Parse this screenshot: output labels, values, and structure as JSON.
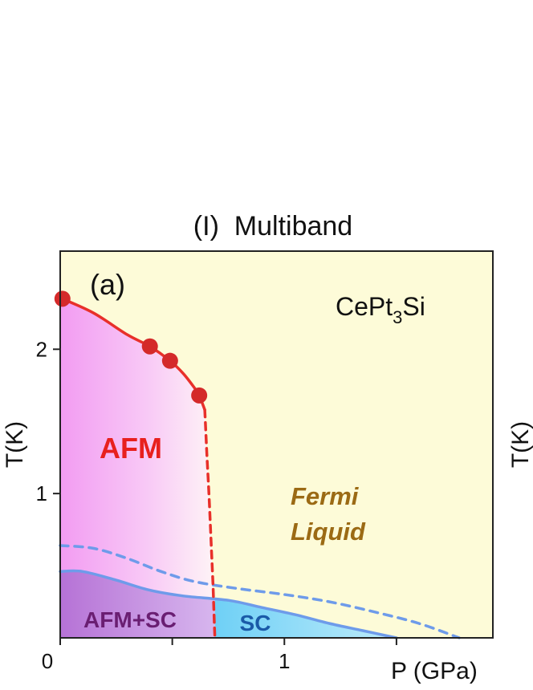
{
  "chart_data": {
    "type": "line",
    "title": "(I)  Multiband",
    "panel_label": "(a)",
    "material": {
      "base": "CePt",
      "sub": "3",
      "tail": "Si"
    },
    "xlabel": "P (GPa)",
    "ylabel": "T(K)",
    "xlim": [
      0,
      1.93
    ],
    "ylim": [
      0,
      2.68
    ],
    "x_ticks": [
      {
        "value": 0,
        "label": "0"
      },
      {
        "value": 0.5,
        "label": ""
      },
      {
        "value": 1,
        "label": "1"
      },
      {
        "value": 1.5,
        "label": ""
      }
    ],
    "y_ticks": [
      {
        "value": 1,
        "label": "1"
      },
      {
        "value": 2,
        "label": "2"
      }
    ],
    "grid": false,
    "colors": {
      "background": "#FDFBD8",
      "afm": "#F4A8F4",
      "afm_sc": "#B776D8",
      "sc": "#7FD6F7",
      "tn_line": "#E8302A",
      "tc_line": "#6E9BEA",
      "afm_text": "#E8201E",
      "fermi_text": "#9B6A14",
      "afm_sc_text": "#6A1E72",
      "sc_text": "#1A5AA8"
    },
    "series": [
      {
        "role": "neel_points",
        "style": "markers",
        "x": [
          0.01,
          0.4,
          0.49,
          0.62
        ],
        "y": [
          2.35,
          2.02,
          1.92,
          1.68
        ]
      },
      {
        "role": "neel_line",
        "style": "solid",
        "x": [
          0.01,
          0.15,
          0.3,
          0.4,
          0.49,
          0.55,
          0.6,
          0.62,
          0.645
        ],
        "y": [
          2.35,
          2.25,
          2.1,
          2.02,
          1.92,
          1.83,
          1.73,
          1.68,
          1.58
        ]
      },
      {
        "role": "neel_line_extrapolated",
        "style": "dashed",
        "x": [
          0.645,
          0.655,
          0.665,
          0.675,
          0.682,
          0.687,
          0.69
        ],
        "y": [
          1.58,
          1.25,
          0.95,
          0.6,
          0.35,
          0.12,
          0.0
        ]
      },
      {
        "role": "tc_solid",
        "style": "solid",
        "x": [
          0,
          0.1,
          0.25,
          0.4,
          0.55,
          0.75,
          0.9,
          1.05,
          1.2,
          1.35,
          1.5
        ],
        "y": [
          0.46,
          0.46,
          0.4,
          0.33,
          0.29,
          0.26,
          0.21,
          0.16,
          0.1,
          0.05,
          0.0
        ]
      },
      {
        "role": "tc_dashed",
        "style": "dashed",
        "x": [
          0,
          0.15,
          0.3,
          0.45,
          0.6,
          0.8,
          1.0,
          1.2,
          1.4,
          1.6,
          1.78
        ],
        "y": [
          0.64,
          0.62,
          0.55,
          0.46,
          0.39,
          0.34,
          0.3,
          0.25,
          0.18,
          0.1,
          0.0
        ]
      }
    ],
    "annotations": [
      {
        "text": "AFM",
        "x": 0.3,
        "y": 1.2
      },
      {
        "text": "Fermi",
        "x": 1.01,
        "y": 0.98
      },
      {
        "text": "Liquid",
        "x": 1.01,
        "y": 0.73
      },
      {
        "text": "AFM+SC",
        "x": 0.3,
        "y": 0.12
      },
      {
        "text": "SC",
        "x": 0.87,
        "y": 0.08
      }
    ],
    "side_fragment": {
      "text": "T(K)"
    }
  }
}
